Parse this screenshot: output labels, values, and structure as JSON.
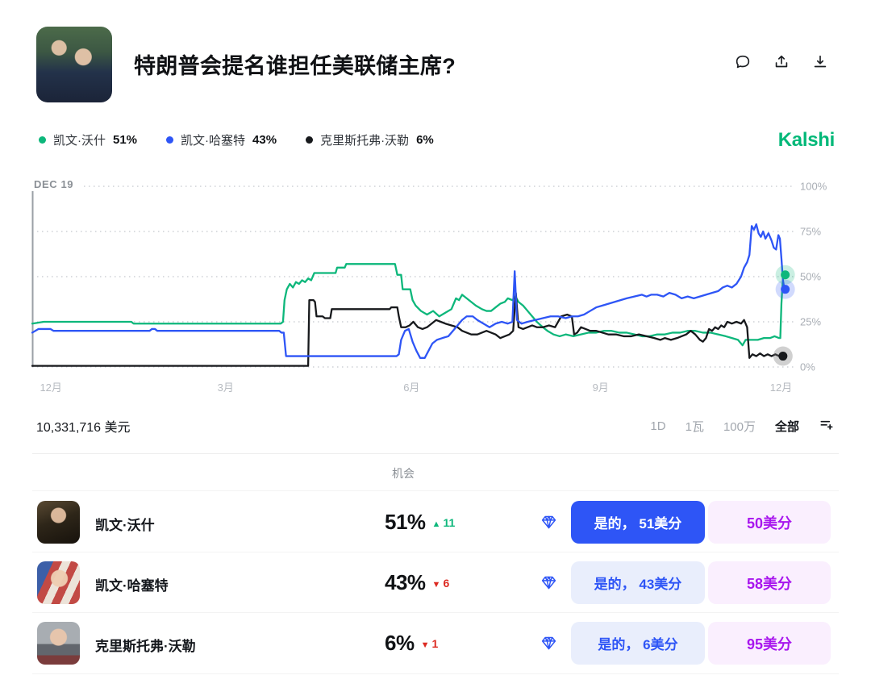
{
  "header": {
    "title": "特朗普会提名谁担任美联储主席?",
    "icons": [
      "comment-icon",
      "share-icon",
      "download-icon"
    ]
  },
  "brand": {
    "label": "Kalshi",
    "color": "#00b878"
  },
  "legend": {
    "items": [
      {
        "name": "凯文·沃什",
        "pct": "51%",
        "color": "#0db77b"
      },
      {
        "name": "凯文·哈塞特",
        "pct": "43%",
        "color": "#2e55f6"
      },
      {
        "name": "克里斯托弗·沃勒",
        "pct": "6%",
        "color": "#17191c"
      }
    ]
  },
  "chart_data": {
    "type": "line",
    "annotation": "DEC 19",
    "ylim": [
      0,
      100
    ],
    "grid": "dotted-horizontal",
    "legend_position": "top-left",
    "y_ticks": [
      {
        "pct": 100,
        "label": "100%"
      },
      {
        "pct": 75,
        "label": "75%"
      },
      {
        "pct": 50,
        "label": "50%"
      },
      {
        "pct": 25,
        "label": "25%"
      },
      {
        "pct": 0,
        "label": "0%"
      }
    ],
    "x_ticks": [
      {
        "pos": 1.0,
        "label": "12月"
      },
      {
        "pos": 24.3,
        "label": "3月"
      },
      {
        "pos": 48.7,
        "label": "6月"
      },
      {
        "pos": 73.5,
        "label": "9月"
      },
      {
        "pos": 96.8,
        "label": "12月"
      }
    ],
    "series": [
      {
        "name": "凯文·沃什",
        "color": "#0db77b",
        "halo": "rgba(13,183,123,0.22)",
        "end": {
          "pos": 98.8,
          "pct": 51
        },
        "points": [
          [
            0,
            24
          ],
          [
            1.5,
            25
          ],
          [
            13,
            25
          ],
          [
            13.3,
            24
          ],
          [
            22,
            24
          ],
          [
            32.6,
            24
          ],
          [
            32.9,
            25
          ],
          [
            33.1,
            37
          ],
          [
            33.4,
            43
          ],
          [
            33.8,
            46
          ],
          [
            34.2,
            44
          ],
          [
            34.6,
            47
          ],
          [
            35,
            46
          ],
          [
            35.4,
            48
          ],
          [
            35.8,
            47
          ],
          [
            36.2,
            49
          ],
          [
            36.6,
            48
          ],
          [
            37,
            52
          ],
          [
            39.8,
            52
          ],
          [
            40,
            55
          ],
          [
            41,
            55
          ],
          [
            41.2,
            57
          ],
          [
            47.6,
            57
          ],
          [
            47.9,
            51
          ],
          [
            48.4,
            51
          ],
          [
            48.6,
            43
          ],
          [
            49.6,
            43
          ],
          [
            49.9,
            37
          ],
          [
            50.3,
            34
          ],
          [
            51,
            31
          ],
          [
            51.8,
            29
          ],
          [
            52.6,
            31
          ],
          [
            53.4,
            28
          ],
          [
            54.2,
            30
          ],
          [
            55,
            32
          ],
          [
            55.6,
            38
          ],
          [
            56,
            37
          ],
          [
            56.4,
            40
          ],
          [
            57,
            38
          ],
          [
            57.6,
            36
          ],
          [
            58.2,
            34
          ],
          [
            59,
            32
          ],
          [
            59.6,
            31
          ],
          [
            60.2,
            31
          ],
          [
            60.8,
            33
          ],
          [
            61.4,
            35
          ],
          [
            62,
            36
          ],
          [
            62.4,
            38
          ],
          [
            63,
            37
          ],
          [
            63.4,
            39
          ],
          [
            63.8,
            36
          ],
          [
            64.4,
            34
          ],
          [
            65,
            31
          ],
          [
            65.6,
            28
          ],
          [
            66.2,
            25
          ],
          [
            67,
            22
          ],
          [
            67.6,
            20
          ],
          [
            68.4,
            18
          ],
          [
            69.2,
            17
          ],
          [
            70,
            18
          ],
          [
            71,
            17
          ],
          [
            72,
            18
          ],
          [
            73,
            19
          ],
          [
            74,
            19
          ],
          [
            75,
            20
          ],
          [
            76,
            20
          ],
          [
            77,
            19
          ],
          [
            78,
            19
          ],
          [
            79,
            18
          ],
          [
            80,
            17
          ],
          [
            81,
            17
          ],
          [
            82,
            18
          ],
          [
            83,
            18
          ],
          [
            84,
            19
          ],
          [
            85,
            19
          ],
          [
            86,
            20
          ],
          [
            87,
            20
          ],
          [
            88,
            19
          ],
          [
            89,
            19
          ],
          [
            90,
            18
          ],
          [
            91,
            17
          ],
          [
            91.8,
            16
          ],
          [
            92.6,
            15
          ],
          [
            93.2,
            12
          ],
          [
            93.6,
            15
          ],
          [
            94.4,
            15
          ],
          [
            95.2,
            15
          ],
          [
            96,
            16
          ],
          [
            96.8,
            16
          ],
          [
            97.4,
            17
          ],
          [
            98,
            16
          ],
          [
            98.15,
            16
          ],
          [
            98.3,
            35
          ],
          [
            98.45,
            46
          ],
          [
            98.6,
            51
          ],
          [
            98.8,
            51
          ]
        ]
      },
      {
        "name": "克里斯托弗·沃勒",
        "color": "#17191c",
        "halo": "rgba(120,120,120,0.35)",
        "end": {
          "pos": 98.5,
          "pct": 6
        },
        "points": [
          [
            0,
            0.6
          ],
          [
            36.2,
            0.6
          ],
          [
            36.35,
            37
          ],
          [
            36.9,
            37
          ],
          [
            37.1,
            36
          ],
          [
            37.3,
            28
          ],
          [
            38.1,
            28
          ],
          [
            38.4,
            27
          ],
          [
            39.1,
            27
          ],
          [
            39.3,
            32
          ],
          [
            46.9,
            32
          ],
          [
            47.1,
            33
          ],
          [
            47.9,
            33
          ],
          [
            48.1,
            28
          ],
          [
            48.4,
            22
          ],
          [
            49,
            22
          ],
          [
            49.5,
            23
          ],
          [
            50,
            25
          ],
          [
            50.6,
            22
          ],
          [
            51.2,
            21
          ],
          [
            51.8,
            22
          ],
          [
            52.4,
            24
          ],
          [
            53,
            26
          ],
          [
            53.6,
            25
          ],
          [
            54.2,
            24
          ],
          [
            55,
            23
          ],
          [
            55.8,
            22
          ],
          [
            56.4,
            20
          ],
          [
            57,
            19
          ],
          [
            57.6,
            18
          ],
          [
            58.4,
            18
          ],
          [
            59,
            19
          ],
          [
            59.6,
            20
          ],
          [
            60.2,
            19
          ],
          [
            60.8,
            18
          ],
          [
            61.4,
            16
          ],
          [
            62,
            17
          ],
          [
            62.6,
            18
          ],
          [
            63.1,
            20
          ],
          [
            63.45,
            41
          ],
          [
            63.8,
            22
          ],
          [
            64.4,
            21
          ],
          [
            65,
            22
          ],
          [
            65.6,
            23
          ],
          [
            66.2,
            22
          ],
          [
            67,
            22
          ],
          [
            67.8,
            23
          ],
          [
            68.6,
            22
          ],
          [
            69.4,
            28
          ],
          [
            70.2,
            29
          ],
          [
            70.8,
            28
          ],
          [
            71.1,
            18
          ],
          [
            71.5,
            19
          ],
          [
            72,
            22
          ],
          [
            72.6,
            21
          ],
          [
            73.2,
            20
          ],
          [
            74,
            20
          ],
          [
            74.8,
            19
          ],
          [
            75.6,
            18
          ],
          [
            76.6,
            18
          ],
          [
            77.6,
            17
          ],
          [
            78.6,
            17
          ],
          [
            79.6,
            18
          ],
          [
            80.6,
            17
          ],
          [
            81.6,
            16
          ],
          [
            82.4,
            15
          ],
          [
            83,
            16
          ],
          [
            83.8,
            15
          ],
          [
            84.6,
            16
          ],
          [
            85.2,
            17
          ],
          [
            85.8,
            18
          ],
          [
            86.4,
            20
          ],
          [
            87,
            18
          ],
          [
            87.6,
            15
          ],
          [
            88,
            14
          ],
          [
            88.4,
            16
          ],
          [
            88.8,
            21
          ],
          [
            89.2,
            20
          ],
          [
            89.6,
            22
          ],
          [
            90,
            21
          ],
          [
            90.4,
            23
          ],
          [
            90.8,
            22
          ],
          [
            91.2,
            25
          ],
          [
            91.8,
            24
          ],
          [
            92.4,
            25
          ],
          [
            93,
            24
          ],
          [
            93.4,
            26
          ],
          [
            93.8,
            22
          ],
          [
            94.1,
            5
          ],
          [
            94.5,
            7
          ],
          [
            95,
            6
          ],
          [
            95.5,
            7.5
          ],
          [
            96,
            6
          ],
          [
            96.5,
            7
          ],
          [
            97,
            6
          ],
          [
            97.5,
            7
          ],
          [
            98,
            6
          ],
          [
            98.5,
            6
          ]
        ]
      },
      {
        "name": "凯文·哈塞特",
        "color": "#2e55f6",
        "halo": "rgba(46,85,246,0.22)",
        "end": {
          "pos": 98.8,
          "pct": 43
        },
        "points": [
          [
            0,
            19
          ],
          [
            0.8,
            21
          ],
          [
            2.4,
            21
          ],
          [
            2.8,
            20
          ],
          [
            15.4,
            20
          ],
          [
            15.7,
            21
          ],
          [
            16.1,
            21
          ],
          [
            16.4,
            20
          ],
          [
            32.4,
            20
          ],
          [
            32.7,
            19
          ],
          [
            33,
            19
          ],
          [
            33.3,
            6
          ],
          [
            47.8,
            6
          ],
          [
            48.1,
            7
          ],
          [
            48.4,
            15
          ],
          [
            48.9,
            20
          ],
          [
            49.4,
            21
          ],
          [
            49.9,
            14
          ],
          [
            50.4,
            9
          ],
          [
            50.9,
            5
          ],
          [
            51.5,
            5
          ],
          [
            52,
            9
          ],
          [
            52.5,
            13
          ],
          [
            53.1,
            15
          ],
          [
            53.8,
            16
          ],
          [
            54.6,
            17
          ],
          [
            55.2,
            20
          ],
          [
            55.8,
            23
          ],
          [
            56.4,
            26
          ],
          [
            57,
            28
          ],
          [
            57.8,
            28
          ],
          [
            58.4,
            26
          ],
          [
            59.2,
            24
          ],
          [
            60,
            22
          ],
          [
            60.8,
            24
          ],
          [
            61.6,
            25
          ],
          [
            62.4,
            24
          ],
          [
            63,
            25
          ],
          [
            63.3,
            53
          ],
          [
            63.6,
            26
          ],
          [
            64.2,
            24
          ],
          [
            65,
            25
          ],
          [
            66,
            26
          ],
          [
            67,
            27
          ],
          [
            68,
            28
          ],
          [
            69,
            28
          ],
          [
            70,
            27
          ],
          [
            70.8,
            28
          ],
          [
            71.6,
            28
          ],
          [
            72.4,
            29
          ],
          [
            73.2,
            31
          ],
          [
            74,
            33
          ],
          [
            74.8,
            34
          ],
          [
            75.6,
            35
          ],
          [
            76.4,
            36
          ],
          [
            77.2,
            37
          ],
          [
            78,
            38
          ],
          [
            79,
            39
          ],
          [
            80,
            40
          ],
          [
            80.6,
            39
          ],
          [
            81.2,
            40
          ],
          [
            82,
            40
          ],
          [
            82.8,
            39
          ],
          [
            83.6,
            41
          ],
          [
            84.4,
            40
          ],
          [
            85.2,
            38
          ],
          [
            86,
            39
          ],
          [
            86.8,
            38
          ],
          [
            87.6,
            39
          ],
          [
            88.4,
            40
          ],
          [
            89.2,
            41
          ],
          [
            90,
            42
          ],
          [
            90.6,
            44
          ],
          [
            91.2,
            45
          ],
          [
            91.8,
            44
          ],
          [
            92.4,
            46
          ],
          [
            93,
            50
          ],
          [
            93.4,
            55
          ],
          [
            93.8,
            58
          ],
          [
            94.1,
            62
          ],
          [
            94.4,
            78
          ],
          [
            94.7,
            76
          ],
          [
            95,
            79
          ],
          [
            95.3,
            74
          ],
          [
            95.6,
            72
          ],
          [
            95.9,
            75
          ],
          [
            96.2,
            71
          ],
          [
            96.6,
            74
          ],
          [
            97,
            70
          ],
          [
            97.3,
            66
          ],
          [
            97.6,
            65
          ],
          [
            97.9,
            73
          ],
          [
            98.1,
            71
          ],
          [
            98.3,
            60
          ],
          [
            98.5,
            48
          ],
          [
            98.7,
            43
          ],
          [
            98.8,
            43
          ]
        ]
      }
    ]
  },
  "volume": {
    "label": "10,331,716 美元"
  },
  "range": {
    "options": [
      {
        "label": "1D",
        "active": false
      },
      {
        "label": "1瓦",
        "active": false
      },
      {
        "label": "100万",
        "active": false
      },
      {
        "label": "全部",
        "active": true
      }
    ],
    "icon": "add-chart-icon"
  },
  "table": {
    "header": "机会",
    "rows": [
      {
        "name": "凯文·沃什",
        "pct": "51%",
        "delta": {
          "arrow": "▲",
          "value": "11",
          "dir": "up"
        },
        "yes_label": "是的， 51美分",
        "no_label": "50美分"
      },
      {
        "name": "凯文·哈塞特",
        "pct": "43%",
        "delta": {
          "arrow": "▼",
          "value": "6",
          "dir": "down"
        },
        "yes_label": "是的， 43美分",
        "no_label": "58美分"
      },
      {
        "name": "克里斯托弗·沃勒",
        "pct": "6%",
        "delta": {
          "arrow": "▼",
          "value": "1",
          "dir": "down"
        },
        "yes_label": "是的， 6美分",
        "no_label": "95美分"
      }
    ]
  }
}
